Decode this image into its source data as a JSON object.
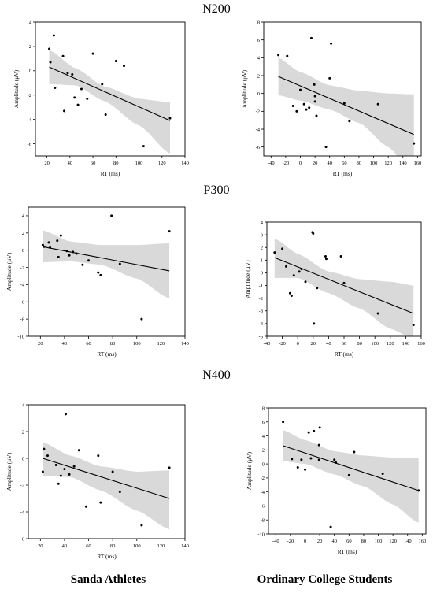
{
  "row_titles": [
    "N200",
    "P300",
    "N400"
  ],
  "group_labels": [
    "Sanda Athletes",
    "Ordinary College Students"
  ],
  "chart_data": [
    {
      "type": "scatter",
      "title": "N200",
      "group": "Sanda Athletes",
      "xlabel": "RT (ms)",
      "ylabel": "Amplitude (μV)",
      "xlim": [
        10,
        140
      ],
      "ylim": [
        -7,
        4
      ],
      "xticks": [
        20,
        40,
        60,
        80,
        100,
        120,
        140
      ],
      "yticks": [
        -6,
        -4,
        -2,
        0,
        2,
        4
      ],
      "points": [
        [
          22,
          1.8
        ],
        [
          23,
          0.7
        ],
        [
          26,
          2.9
        ],
        [
          27,
          -1.4
        ],
        [
          34,
          1.2
        ],
        [
          35,
          -3.3
        ],
        [
          38,
          -0.2
        ],
        [
          42,
          -0.3
        ],
        [
          44,
          -2.2
        ],
        [
          47,
          -2.8
        ],
        [
          50,
          -1.5
        ],
        [
          55,
          -2.3
        ],
        [
          60,
          1.4
        ],
        [
          68,
          -1.1
        ],
        [
          71,
          -3.6
        ],
        [
          80,
          0.8
        ],
        [
          87,
          0.4
        ],
        [
          104,
          -6.2
        ],
        [
          127,
          -3.9
        ]
      ],
      "fit_line": [
        [
          22,
          0.3
        ],
        [
          127,
          -4.1
        ]
      ],
      "confidence_band": {
        "x": [
          22,
          45,
          70,
          100,
          127
        ],
        "upper": [
          1.7,
          0.2,
          -1.3,
          -2.3,
          -2.6
        ],
        "lower": [
          -1.1,
          -1.2,
          -2.5,
          -4.5,
          -6.8
        ]
      }
    },
    {
      "type": "scatter",
      "title": "N200",
      "group": "Ordinary College Students",
      "xlabel": "RT (ms)",
      "ylabel": "Amplitude (μV)",
      "xlim": [
        -50,
        165
      ],
      "ylim": [
        -7,
        8
      ],
      "xticks": [
        -40,
        -20,
        0,
        20,
        40,
        60,
        80,
        100,
        120,
        140,
        160
      ],
      "yticks": [
        -6,
        -4,
        -2,
        0,
        2,
        4,
        6,
        8
      ],
      "points": [
        [
          -30,
          4.3
        ],
        [
          -18,
          4.2
        ],
        [
          -10,
          -1.4
        ],
        [
          -5,
          -2.0
        ],
        [
          0,
          0.4
        ],
        [
          5,
          -1.2
        ],
        [
          8,
          -1.8
        ],
        [
          12,
          -1.6
        ],
        [
          15,
          6.2
        ],
        [
          19,
          1.0
        ],
        [
          20,
          -0.3
        ],
        [
          20,
          -0.9
        ],
        [
          22,
          -2.5
        ],
        [
          35,
          -6.0
        ],
        [
          40,
          1.7
        ],
        [
          42,
          5.6
        ],
        [
          60,
          -1.1
        ],
        [
          67,
          -3.1
        ],
        [
          106,
          -1.2
        ],
        [
          155,
          -5.6
        ]
      ],
      "fit_line": [
        [
          -30,
          1.9
        ],
        [
          155,
          -4.6
        ]
      ],
      "confidence_band": {
        "x": [
          -30,
          0,
          40,
          80,
          120,
          155
        ],
        "upper": [
          4.0,
          2.4,
          0.9,
          0.3,
          0.0,
          -0.1
        ],
        "lower": [
          -0.2,
          -0.8,
          -1.8,
          -3.3,
          -6.0,
          -9.2
        ]
      }
    },
    {
      "type": "scatter",
      "title": "P300",
      "group": "Sanda Athletes",
      "xlabel": "RT (ms)",
      "ylabel": "Amplitude (μV)",
      "xlim": [
        10,
        140
      ],
      "ylim": [
        -10,
        5
      ],
      "xticks": [
        20,
        40,
        60,
        80,
        100,
        120,
        140
      ],
      "yticks": [
        -10,
        -8,
        -6,
        -4,
        -2,
        0,
        2,
        4
      ],
      "points": [
        [
          22,
          0.6
        ],
        [
          23,
          0.4
        ],
        [
          27,
          0.9
        ],
        [
          28,
          0.3
        ],
        [
          34,
          1.1
        ],
        [
          35,
          -0.8
        ],
        [
          37,
          1.7
        ],
        [
          42,
          -0.1
        ],
        [
          44,
          -0.6
        ],
        [
          47,
          -0.2
        ],
        [
          50,
          -0.4
        ],
        [
          55,
          -1.7
        ],
        [
          60,
          -1.2
        ],
        [
          68,
          -2.6
        ],
        [
          70,
          -2.9
        ],
        [
          79,
          4.0
        ],
        [
          86,
          -1.6
        ],
        [
          104,
          -8.0
        ],
        [
          127,
          2.2
        ]
      ],
      "fit_line": [
        [
          22,
          0.4
        ],
        [
          127,
          -2.4
        ]
      ],
      "confidence_band": {
        "x": [
          22,
          45,
          70,
          100,
          127
        ],
        "upper": [
          2.3,
          1.0,
          0.6,
          0.6,
          0.8
        ],
        "lower": [
          -1.4,
          -1.3,
          -1.7,
          -3.3,
          -5.6
        ]
      }
    },
    {
      "type": "scatter",
      "title": "P300",
      "group": "Ordinary College Students",
      "xlabel": "RT (ms)",
      "ylabel": "Amplitude (μV)",
      "xlim": [
        -40,
        160
      ],
      "ylim": [
        -5,
        4
      ],
      "xticks": [
        -40,
        -20,
        0,
        20,
        40,
        60,
        80,
        100,
        120,
        140,
        160
      ],
      "yticks": [
        -5,
        -4,
        -3,
        -2,
        -1,
        0,
        1,
        2,
        3,
        4
      ],
      "points": [
        [
          -30,
          1.6
        ],
        [
          -20,
          1.9
        ],
        [
          -15,
          0.5
        ],
        [
          -10,
          -1.6
        ],
        [
          -8,
          -1.8
        ],
        [
          -5,
          -0.2
        ],
        [
          2,
          0.1
        ],
        [
          5,
          0.3
        ],
        [
          10,
          -0.7
        ],
        [
          19,
          3.2
        ],
        [
          20,
          3.1
        ],
        [
          21,
          -4.0
        ],
        [
          25,
          -1.2
        ],
        [
          36,
          1.3
        ],
        [
          37,
          1.1
        ],
        [
          56,
          1.3
        ],
        [
          60,
          -0.8
        ],
        [
          104,
          -3.2
        ],
        [
          150,
          -4.1
        ]
      ],
      "fit_line": [
        [
          -30,
          1.2
        ],
        [
          150,
          -3.2
        ]
      ],
      "confidence_band": {
        "x": [
          -30,
          0,
          40,
          80,
          120,
          150
        ],
        "upper": [
          2.7,
          1.5,
          0.1,
          -0.5,
          -0.7,
          -1.0
        ],
        "lower": [
          -0.4,
          -0.4,
          -1.6,
          -2.8,
          -4.4,
          -5.2
        ]
      }
    },
    {
      "type": "scatter",
      "title": "N400",
      "group": "Sanda Athletes",
      "xlabel": "RT (ms)",
      "ylabel": "Amplitude (μV)",
      "xlim": [
        10,
        140
      ],
      "ylim": [
        -6,
        4
      ],
      "xticks": [
        20,
        40,
        60,
        80,
        100,
        120,
        140
      ],
      "yticks": [
        -6,
        -4,
        -2,
        0,
        2,
        4
      ],
      "points": [
        [
          22,
          -1.0
        ],
        [
          23,
          0.7
        ],
        [
          26,
          0.2
        ],
        [
          33,
          -0.5
        ],
        [
          35,
          -1.9
        ],
        [
          37,
          -1.3
        ],
        [
          40,
          -0.8
        ],
        [
          41,
          3.3
        ],
        [
          44,
          -1.2
        ],
        [
          48,
          -0.6
        ],
        [
          52,
          0.6
        ],
        [
          58,
          -3.6
        ],
        [
          68,
          0.2
        ],
        [
          70,
          -3.3
        ],
        [
          80,
          -1.0
        ],
        [
          86,
          -2.5
        ],
        [
          104,
          -5.0
        ],
        [
          127,
          -0.7
        ]
      ],
      "fit_line": [
        [
          22,
          0.0
        ],
        [
          127,
          -3.0
        ]
      ],
      "confidence_band": {
        "x": [
          22,
          45,
          70,
          100,
          127
        ],
        "upper": [
          1.2,
          0.2,
          -0.6,
          -1.0,
          -0.9
        ],
        "lower": [
          -1.3,
          -1.4,
          -2.4,
          -3.9,
          -5.3
        ]
      }
    },
    {
      "type": "scatter",
      "title": "N400",
      "group": "Ordinary College Students",
      "xlabel": "RT (ms)",
      "ylabel": "Amplitude (μV)",
      "xlim": [
        -50,
        165
      ],
      "ylim": [
        -10,
        8
      ],
      "xticks": [
        -40,
        -20,
        0,
        20,
        40,
        60,
        80,
        100,
        120,
        140,
        160
      ],
      "yticks": [
        -10,
        -8,
        -6,
        -4,
        -2,
        0,
        2,
        4,
        6,
        8
      ],
      "points": [
        [
          -30,
          6.0
        ],
        [
          -18,
          0.7
        ],
        [
          -10,
          -0.5
        ],
        [
          -5,
          0.6
        ],
        [
          0,
          -0.8
        ],
        [
          5,
          4.5
        ],
        [
          8,
          0.8
        ],
        [
          12,
          4.7
        ],
        [
          19,
          2.7
        ],
        [
          19,
          0.6
        ],
        [
          20,
          5.2
        ],
        [
          35,
          -9.0
        ],
        [
          40,
          0.6
        ],
        [
          42,
          0.2
        ],
        [
          60,
          -1.6
        ],
        [
          67,
          1.7
        ],
        [
          106,
          -1.4
        ],
        [
          155,
          -3.8
        ]
      ],
      "fit_line": [
        [
          -30,
          2.6
        ],
        [
          155,
          -3.8
        ]
      ],
      "confidence_band": {
        "x": [
          -30,
          0,
          40,
          80,
          120,
          155
        ],
        "upper": [
          4.8,
          3.4,
          1.8,
          1.2,
          0.9,
          0.8
        ],
        "lower": [
          0.4,
          0.0,
          -1.5,
          -3.2,
          -5.8,
          -8.4
        ]
      }
    }
  ]
}
